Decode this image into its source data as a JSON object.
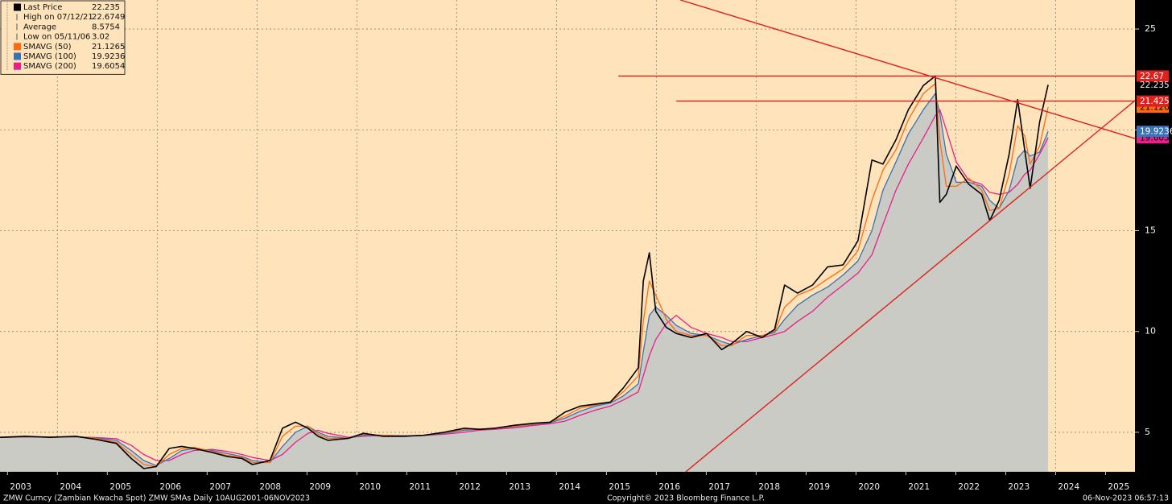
{
  "chart_data": {
    "type": "line",
    "title": "ZMW Curncy (Zambian Kwacha Spot) ZMW SMAs  Daily 10AUG2001-06NOV2023",
    "copyright": "Copyright© 2023 Bloomberg Finance L.P.",
    "timestamp": "06-Nov-2023 06:57:13",
    "xlim": [
      2002.85,
      2025.59
    ],
    "xticks": [
      2003,
      2004,
      2005,
      2006,
      2007,
      2008,
      2009,
      2010,
      2011,
      2012,
      2013,
      2014,
      2015,
      2016,
      2017,
      2018,
      2019,
      2020,
      2021,
      2022,
      2023,
      2024,
      2025
    ],
    "ylim": [
      3.04,
      26.44
    ],
    "yticks": [
      5,
      10,
      15,
      20,
      25
    ],
    "grid": true,
    "x": [
      2002.85,
      2003.36,
      2003.86,
      2004.37,
      2004.77,
      2005.18,
      2005.48,
      2005.73,
      2005.98,
      2006.24,
      2006.49,
      2006.74,
      2007.1,
      2007.4,
      2007.7,
      2007.91,
      2008.26,
      2008.51,
      2008.77,
      2009.02,
      2009.22,
      2009.42,
      2009.83,
      2010.13,
      2010.53,
      2010.94,
      2011.34,
      2011.75,
      2012.15,
      2012.46,
      2012.76,
      2013.16,
      2013.57,
      2013.87,
      2014.17,
      2014.48,
      2014.78,
      2015.08,
      2015.34,
      2015.64,
      2015.74,
      2015.86,
      2015.99,
      2016.2,
      2016.4,
      2016.7,
      2017.01,
      2017.31,
      2017.51,
      2017.81,
      2018.12,
      2018.37,
      2018.57,
      2018.83,
      2019.13,
      2019.43,
      2019.74,
      2020.04,
      2020.32,
      2020.54,
      2020.8,
      2021.05,
      2021.35,
      2021.59,
      2021.68,
      2021.81,
      2022.01,
      2022.26,
      2022.52,
      2022.68,
      2022.87,
      2023.07,
      2023.24,
      2023.38,
      2023.49,
      2023.68,
      2023.85
    ],
    "series": [
      {
        "name": "Last Price",
        "color": "#000000",
        "width": 1.6,
        "values": [
          4.75,
          4.8,
          4.75,
          4.8,
          4.65,
          4.45,
          3.7,
          3.2,
          3.3,
          4.2,
          4.3,
          4.2,
          4.0,
          3.8,
          3.7,
          3.4,
          3.6,
          5.2,
          5.5,
          5.2,
          4.8,
          4.6,
          4.7,
          4.95,
          4.8,
          4.8,
          4.85,
          5.0,
          5.2,
          5.15,
          5.2,
          5.35,
          5.45,
          5.5,
          6.0,
          6.3,
          6.4,
          6.5,
          7.2,
          8.2,
          12.5,
          13.9,
          11.0,
          10.2,
          9.9,
          9.7,
          9.9,
          9.1,
          9.4,
          10.0,
          9.7,
          10.1,
          12.3,
          11.9,
          12.3,
          13.2,
          13.3,
          14.5,
          18.5,
          18.3,
          19.5,
          21.0,
          22.2,
          22.67,
          16.4,
          16.8,
          18.2,
          17.3,
          16.8,
          15.5,
          16.5,
          18.8,
          21.5,
          19.0,
          17.1,
          20.4,
          22.235
        ]
      },
      {
        "name": "SMAVG (50)",
        "color": "#ff6a10",
        "width": 1.3,
        "values": [
          4.75,
          4.78,
          4.77,
          4.78,
          4.7,
          4.5,
          3.9,
          3.4,
          3.3,
          3.9,
          4.2,
          4.25,
          4.05,
          3.85,
          3.75,
          3.5,
          3.5,
          4.8,
          5.3,
          5.3,
          4.9,
          4.7,
          4.7,
          4.9,
          4.85,
          4.8,
          4.85,
          4.98,
          5.15,
          5.15,
          5.2,
          5.3,
          5.42,
          5.5,
          5.8,
          6.2,
          6.35,
          6.5,
          7.0,
          7.8,
          10.5,
          12.5,
          11.8,
          10.6,
          10.0,
          9.8,
          9.8,
          9.3,
          9.3,
          9.8,
          9.8,
          10.0,
          11.2,
          11.8,
          12.1,
          12.6,
          13.1,
          14.0,
          16.5,
          18.0,
          19.0,
          20.5,
          21.8,
          22.3,
          19.5,
          17.2,
          17.2,
          17.6,
          17.0,
          16.0,
          16.1,
          17.8,
          20.2,
          19.7,
          18.3,
          19.2,
          21.1265
        ]
      },
      {
        "name": "SMAVG (100)",
        "color": "#3a72b8",
        "width": 1.3,
        "area_color": "#c9cbc4",
        "values": [
          4.75,
          4.77,
          4.77,
          4.77,
          4.72,
          4.6,
          4.1,
          3.6,
          3.35,
          3.7,
          4.1,
          4.2,
          4.1,
          3.95,
          3.8,
          3.6,
          3.5,
          4.3,
          5.0,
          5.3,
          5.0,
          4.8,
          4.7,
          4.85,
          4.85,
          4.82,
          4.84,
          4.95,
          5.1,
          5.15,
          5.2,
          5.28,
          5.4,
          5.47,
          5.7,
          6.05,
          6.3,
          6.45,
          6.8,
          7.4,
          9.0,
          10.8,
          11.2,
          10.8,
          10.3,
          9.9,
          9.8,
          9.5,
          9.35,
          9.6,
          9.8,
          9.95,
          10.6,
          11.3,
          11.8,
          12.2,
          12.8,
          13.5,
          15.0,
          17.0,
          18.4,
          19.8,
          21.0,
          21.8,
          20.8,
          18.8,
          17.4,
          17.4,
          17.2,
          16.5,
          16.1,
          17.0,
          18.6,
          19.0,
          18.7,
          18.9,
          19.9236
        ]
      },
      {
        "name": "SMAVG (200)",
        "color": "#e8208c",
        "width": 1.3,
        "values": [
          4.75,
          4.76,
          4.77,
          4.77,
          4.74,
          4.68,
          4.35,
          3.9,
          3.6,
          3.6,
          3.9,
          4.1,
          4.15,
          4.05,
          3.9,
          3.75,
          3.6,
          3.9,
          4.5,
          4.95,
          5.1,
          4.95,
          4.75,
          4.8,
          4.85,
          4.83,
          4.84,
          4.9,
          5.0,
          5.1,
          5.15,
          5.22,
          5.35,
          5.42,
          5.55,
          5.85,
          6.1,
          6.3,
          6.6,
          7.0,
          7.8,
          8.8,
          9.6,
          10.4,
          10.8,
          10.2,
          9.9,
          9.7,
          9.5,
          9.5,
          9.7,
          9.85,
          10.0,
          10.5,
          11.0,
          11.7,
          12.3,
          12.9,
          13.8,
          15.3,
          17.0,
          18.3,
          19.6,
          20.7,
          21.0,
          20.0,
          18.4,
          17.5,
          17.3,
          16.9,
          16.8,
          16.9,
          17.3,
          17.8,
          18.0,
          18.8,
          19.6054
        ]
      }
    ],
    "stats": [
      {
        "label": "High on 07/12/21",
        "value": 22.6749
      },
      {
        "label": "Average",
        "value": 8.5754
      },
      {
        "label": "Low on 05/11/06",
        "value": 3.02
      }
    ],
    "reference_lines": [
      {
        "y": 22.67,
        "x_start": 2015.24,
        "color": "#e0201c"
      },
      {
        "y": 21.425,
        "x_start": 2016.4,
        "color": "#e0201c"
      }
    ],
    "trendlines": [
      {
        "x": [
          2016.48,
          2025.59
        ],
        "y": [
          26.44,
          19.57
        ],
        "color": "#e0201c"
      },
      {
        "x": [
          2016.59,
          2025.59
        ],
        "y": [
          3.04,
          21.45
        ],
        "color": "#e0201c"
      }
    ]
  }
}
